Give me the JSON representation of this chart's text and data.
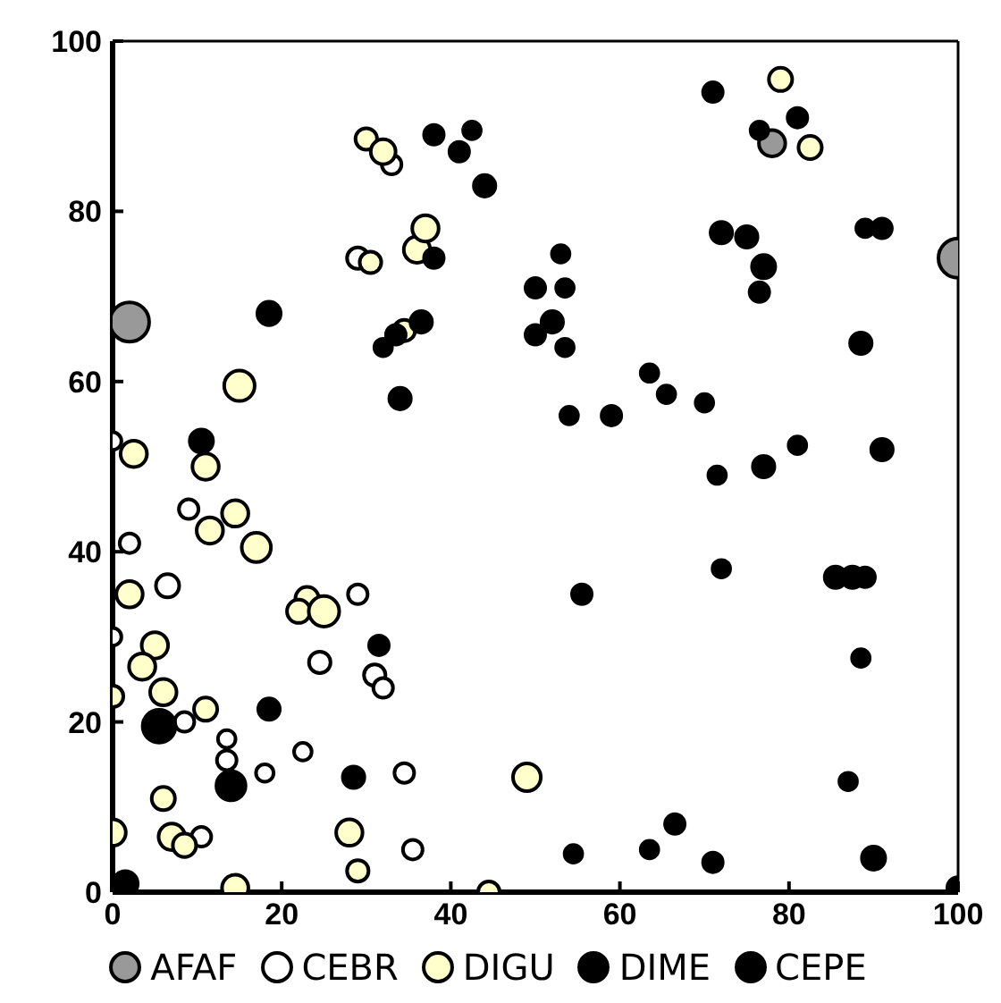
{
  "chart_data": {
    "type": "bubble",
    "xlim": [
      0,
      100
    ],
    "ylim": [
      0,
      100
    ],
    "xticks": [
      0,
      20,
      40,
      60,
      80,
      100
    ],
    "yticks": [
      0,
      20,
      40,
      60,
      80,
      100
    ],
    "grid": false,
    "legend": "bottom",
    "marker": "circle",
    "series": [
      {
        "name": "AFAF",
        "color": "#999999",
        "x": [
          2,
          78,
          100
        ],
        "values": [
          67,
          88,
          74.5
        ],
        "sizes": [
          1,
          0.45,
          1
        ]
      },
      {
        "name": "CEBR",
        "color": "#ffffff",
        "x": [
          29,
          33,
          0,
          2,
          6.5,
          9,
          0,
          8.5,
          13.5,
          13.5,
          18,
          22.5,
          24.5,
          31,
          32,
          35.5,
          29,
          34.5,
          10.5
        ],
        "values": [
          74.5,
          85.5,
          53,
          41,
          36,
          45,
          30,
          20,
          18,
          15.5,
          14,
          16.5,
          27,
          25.5,
          24,
          5,
          35,
          14,
          6.5
        ],
        "sizes": [
          0.3,
          0.25,
          0.2,
          0.25,
          0.35,
          0.25,
          0.2,
          0.25,
          0.2,
          0.25,
          0.2,
          0.2,
          0.3,
          0.3,
          0.25,
          0.25,
          0.25,
          0.25,
          0.25
        ]
      },
      {
        "name": "DIGU",
        "color": "#ffffcc",
        "x": [
          30,
          32,
          36,
          37,
          30.5,
          34.5,
          15,
          17,
          11,
          2,
          5,
          3.5,
          6,
          0,
          11,
          0,
          7,
          8.5,
          6,
          14.5,
          28,
          29,
          23,
          22,
          25,
          49,
          44.5,
          79,
          82.5,
          14.5,
          11.5,
          2.5
        ],
        "values": [
          88.5,
          87,
          75.5,
          78,
          74,
          66,
          59.5,
          40.5,
          50,
          35,
          29,
          26.5,
          23.5,
          23,
          21.5,
          7,
          6.5,
          5.5,
          11,
          0.5,
          7,
          2.5,
          34.5,
          33,
          33,
          13.5,
          0,
          95.5,
          87.5,
          44.5,
          42.5,
          51.5
        ],
        "sizes": [
          0.3,
          0.4,
          0.45,
          0.45,
          0.3,
          0.3,
          0.6,
          0.55,
          0.45,
          0.45,
          0.45,
          0.45,
          0.45,
          0.3,
          0.35,
          0.45,
          0.45,
          0.35,
          0.35,
          0.45,
          0.45,
          0.3,
          0.35,
          0.35,
          0.6,
          0.5,
          0.3,
          0.35,
          0.35,
          0.45,
          0.45,
          0.45
        ]
      },
      {
        "name": "DIME",
        "color": "#000000",
        "x": [
          5.5,
          14,
          10.5,
          18.5,
          28.5,
          1.5
        ],
        "values": [
          19.5,
          12.5,
          53,
          21.5,
          13.5,
          1
        ],
        "sizes": [
          0.7,
          0.55,
          0.35,
          0.3,
          0.3,
          0.4
        ]
      },
      {
        "name": "CEPE",
        "color": "#000000",
        "x": [
          38,
          41,
          42.5,
          44,
          36.5,
          38,
          32,
          33.5,
          34,
          18.5,
          31.5,
          50,
          50,
          52,
          53,
          53.5,
          53.5,
          54,
          59,
          55.5,
          54.5,
          63.5,
          66.5,
          71,
          70,
          71.5,
          72,
          63.5,
          65.5,
          71,
          75,
          72,
          76.5,
          77,
          77,
          76.5,
          81,
          81,
          89,
          91,
          88.5,
          91,
          85.5,
          87.5,
          89,
          88.5,
          87,
          90,
          100
        ],
        "values": [
          89,
          87,
          89.5,
          83,
          67,
          74.5,
          64,
          65.5,
          58,
          68,
          29,
          71,
          65.5,
          67,
          75,
          71,
          64,
          56,
          56,
          35,
          4.5,
          5,
          8,
          3.5,
          57.5,
          49,
          38,
          61,
          58.5,
          94,
          77,
          77.5,
          70.5,
          73.5,
          50,
          89.5,
          91,
          52.5,
          78,
          78,
          64.5,
          52,
          37,
          37,
          37,
          27.5,
          13,
          4,
          0.5
        ],
        "sizes": [
          0.25,
          0.25,
          0.2,
          0.3,
          0.3,
          0.25,
          0.2,
          0.25,
          0.3,
          0.35,
          0.25,
          0.25,
          0.25,
          0.3,
          0.2,
          0.2,
          0.2,
          0.2,
          0.25,
          0.25,
          0.2,
          0.2,
          0.25,
          0.25,
          0.2,
          0.2,
          0.2,
          0.2,
          0.2,
          0.25,
          0.3,
          0.3,
          0.25,
          0.35,
          0.3,
          0.2,
          0.25,
          0.2,
          0.2,
          0.25,
          0.3,
          0.3,
          0.3,
          0.3,
          0.25,
          0.2,
          0.2,
          0.35,
          0.3
        ]
      }
    ]
  }
}
